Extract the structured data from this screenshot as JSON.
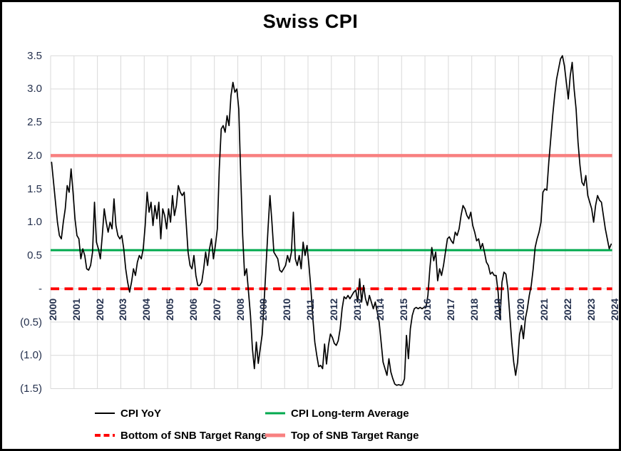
{
  "title": "Swiss CPI",
  "y_axis": {
    "ticks": [
      {
        "label": "3.5",
        "value": 3.5
      },
      {
        "label": "3.0",
        "value": 3.0
      },
      {
        "label": "2.5",
        "value": 2.5
      },
      {
        "label": "2.0",
        "value": 2.0
      },
      {
        "label": "1.5",
        "value": 1.5
      },
      {
        "label": "1.0",
        "value": 1.0
      },
      {
        "label": "0.5",
        "value": 0.5
      },
      {
        "label": "-",
        "value": 0.0
      },
      {
        "label": "(0.5)",
        "value": -0.5
      },
      {
        "label": "(1.0)",
        "value": -1.0
      },
      {
        "label": "(1.5)",
        "value": -1.5
      }
    ]
  },
  "x_axis": {
    "years": [
      "2000",
      "2001",
      "2002",
      "2003",
      "2004",
      "2005",
      "2006",
      "2007",
      "2008",
      "2009",
      "2010",
      "2011",
      "2012",
      "2013",
      "2014",
      "2015",
      "2016",
      "2017",
      "2018",
      "2019",
      "2020",
      "2021",
      "2022",
      "2023",
      "2024"
    ]
  },
  "legend": {
    "items": [
      {
        "label": "CPI YoY",
        "color": "#000000",
        "style": "solid",
        "weight": 2
      },
      {
        "label": "CPI Long-term Average",
        "color": "#00A94E",
        "style": "solid",
        "weight": 3
      },
      {
        "label": "Bottom of SNB Target Range",
        "color": "#FE0000",
        "style": "dashed",
        "weight": 4
      },
      {
        "label": "Top of SNB Target Range",
        "color": "#F88080",
        "style": "solid",
        "weight": 5
      }
    ]
  },
  "colors": {
    "cpi_line": "#000000",
    "average_line": "#00A94E",
    "bottom_line": "#FE0000",
    "top_line": "#F88080",
    "gridline": "#D9D9D9",
    "axis_text": "#24304d"
  },
  "chart_data": {
    "type": "line",
    "title": "Swiss CPI",
    "unit": "percent_yoy",
    "frequency": "monthly",
    "x_start": "2000-01",
    "x_end": "2023-12",
    "ylim": [
      -1.5,
      3.5
    ],
    "grid": true,
    "legend_position": "bottom",
    "series": [
      {
        "name": "CPI YoY",
        "values": [
          1.9,
          1.6,
          1.3,
          1.0,
          0.8,
          0.75,
          1.0,
          1.2,
          1.55,
          1.45,
          1.8,
          1.45,
          1.05,
          0.8,
          0.75,
          0.45,
          0.6,
          0.5,
          0.3,
          0.28,
          0.35,
          0.55,
          1.3,
          0.7,
          0.6,
          0.45,
          0.8,
          1.2,
          1.0,
          0.85,
          1.0,
          0.9,
          1.35,
          0.95,
          0.8,
          0.75,
          0.8,
          0.6,
          0.3,
          0.1,
          -0.05,
          0.1,
          0.3,
          0.2,
          0.4,
          0.5,
          0.45,
          0.6,
          0.95,
          1.45,
          1.15,
          1.3,
          0.95,
          1.25,
          1.05,
          1.3,
          0.75,
          1.2,
          1.1,
          0.9,
          1.2,
          1.0,
          1.4,
          1.1,
          1.25,
          1.55,
          1.45,
          1.4,
          1.45,
          1.0,
          0.55,
          0.35,
          0.3,
          0.5,
          0.2,
          0.05,
          0.05,
          0.1,
          0.3,
          0.55,
          0.35,
          0.6,
          0.75,
          0.45,
          0.65,
          0.9,
          1.8,
          2.4,
          2.45,
          2.35,
          2.6,
          2.45,
          2.9,
          3.1,
          2.95,
          3.0,
          2.7,
          1.7,
          0.8,
          0.2,
          0.3,
          -0.05,
          -0.4,
          -0.9,
          -1.2,
          -0.8,
          -1.12,
          -0.9,
          -0.69,
          -0.2,
          0.35,
          0.9,
          1.4,
          1.0,
          0.55,
          0.5,
          0.45,
          0.28,
          0.25,
          0.3,
          0.35,
          0.5,
          0.4,
          0.55,
          1.15,
          0.45,
          0.35,
          0.5,
          0.3,
          0.7,
          0.5,
          0.65,
          0.35,
          0.0,
          -0.45,
          -0.8,
          -1.0,
          -1.17,
          -1.15,
          -1.2,
          -0.83,
          -1.13,
          -0.85,
          -0.68,
          -0.73,
          -0.82,
          -0.85,
          -0.78,
          -0.6,
          -0.3,
          -0.12,
          -0.15,
          -0.1,
          -0.15,
          -0.1,
          -0.05,
          -0.02,
          -0.2,
          0.15,
          -0.2,
          0.05,
          -0.15,
          -0.25,
          -0.1,
          -0.2,
          -0.3,
          -0.2,
          -0.35,
          -0.5,
          -0.8,
          -1.1,
          -1.2,
          -1.3,
          -1.05,
          -1.25,
          -1.35,
          -1.43,
          -1.45,
          -1.44,
          -1.45,
          -1.44,
          -1.35,
          -0.7,
          -1.05,
          -0.6,
          -0.4,
          -0.3,
          -0.28,
          -0.3,
          -0.28,
          -0.3,
          -0.28,
          -0.28,
          -0.1,
          0.3,
          0.62,
          0.42,
          0.55,
          0.12,
          0.3,
          0.2,
          0.35,
          0.55,
          0.75,
          0.78,
          0.72,
          0.68,
          0.85,
          0.8,
          0.9,
          1.1,
          1.25,
          1.2,
          1.1,
          1.05,
          1.15,
          0.95,
          0.85,
          0.72,
          0.75,
          0.6,
          0.68,
          0.55,
          0.4,
          0.35,
          0.22,
          0.25,
          0.2,
          0.2,
          -0.05,
          -0.45,
          0.1,
          0.25,
          0.22,
          0.0,
          -0.4,
          -0.8,
          -1.1,
          -1.3,
          -1.1,
          -0.69,
          -0.55,
          -0.75,
          -0.45,
          -0.3,
          -0.1,
          0.05,
          0.3,
          0.62,
          0.75,
          0.85,
          1.0,
          1.45,
          1.5,
          1.48,
          1.9,
          2.25,
          2.6,
          2.9,
          3.15,
          3.3,
          3.45,
          3.5,
          3.35,
          3.1,
          2.85,
          3.2,
          3.4,
          3.0,
          2.7,
          2.2,
          1.85,
          1.6,
          1.55,
          1.7,
          1.4,
          1.3,
          1.2,
          1.0,
          1.25,
          1.4,
          1.33,
          1.3,
          1.1,
          0.9,
          0.75,
          0.6,
          0.67
        ]
      }
    ],
    "reference_lines": [
      {
        "name": "CPI Long-term Average",
        "value": 0.58,
        "color": "#00A94E",
        "style": "solid"
      },
      {
        "name": "Bottom of SNB Target Range",
        "value": 0.0,
        "color": "#FE0000",
        "style": "dashed"
      },
      {
        "name": "Top of SNB Target Range",
        "value": 2.0,
        "color": "#F88080",
        "style": "solid"
      }
    ]
  }
}
